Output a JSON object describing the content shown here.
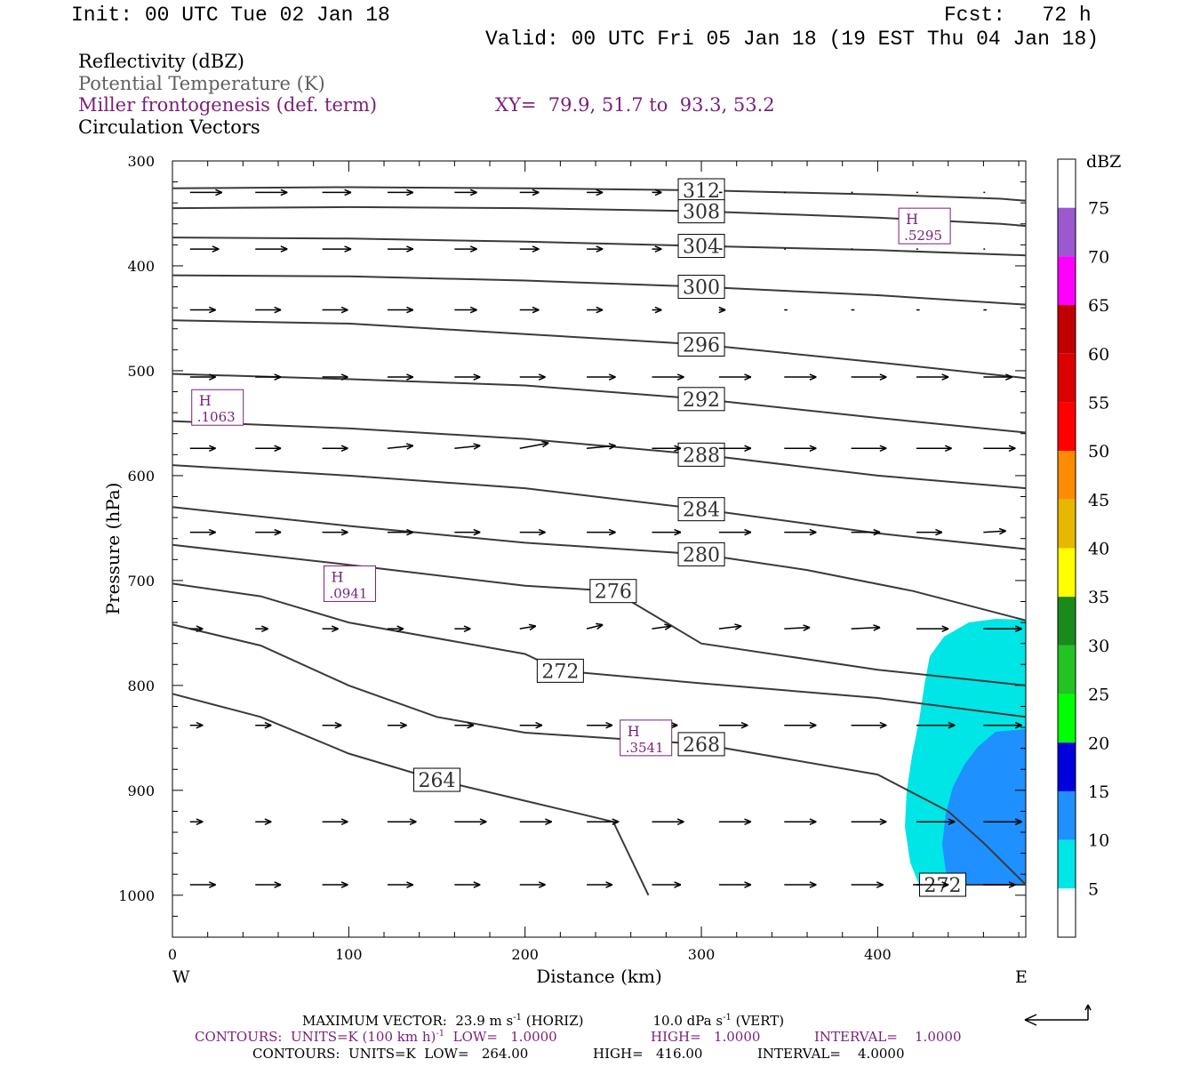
{
  "header": {
    "init": "Init: 00 UTC Tue 02 Jan 18",
    "fcst": "Fcst:   72 h",
    "valid": "Valid: 00 UTC Fri 05 Jan 18 (19 EST Thu 04 Jan 18)"
  },
  "legend_lines": {
    "reflectivity": "Reflectivity (dBZ)",
    "theta": "Potential Temperature (K)",
    "frontogenesis": "Miller frontogenesis (def. term)",
    "xy": "XY=  79.9, 51.7 to  93.3, 53.2",
    "vectors": "Circulation Vectors"
  },
  "footer": {
    "max_vector_a": "MAXIMUM VECTOR:  23.9 m s",
    "max_vector_a_sup": "-1",
    "max_vector_b": " (HORIZ)",
    "max_vector_c": "10.0 dPa s",
    "max_vector_c_sup": "-1",
    "max_vector_d": " (VERT)",
    "contours1_a": "CONTOURS:  UNITS=K (100 km h)",
    "contours1_sup": "-1",
    "contours1_b": "  LOW=   1.0000",
    "contours1_high": "HIGH=   1.0000",
    "contours1_int": "INTERVAL=    1.0000",
    "contours2_a": "CONTOURS:  UNITS=K  LOW=   264.00",
    "contours2_high": "HIGH=   416.00",
    "contours2_int": "INTERVAL=    4.0000"
  },
  "colors": {
    "frontogenesis": "#7a1f7a",
    "theta_line": "#3a3a3a"
  },
  "chart_data": {
    "type": "cross-section",
    "xlabel": "Distance (km)",
    "ylabel": "Pressure (hPa)",
    "x_end_labels": [
      "W",
      "E"
    ],
    "xlim": [
      0,
      484
    ],
    "ylim": [
      1040,
      300
    ],
    "y_scale": "linear (pressure, increasing downward)",
    "x_ticks": [
      0,
      100,
      200,
      300,
      400
    ],
    "y_ticks": [
      300,
      400,
      500,
      600,
      700,
      800,
      900,
      1000
    ],
    "colorbar": {
      "unit": "dBZ",
      "labels": [
        "75",
        "70",
        "65",
        "60",
        "55",
        "50",
        "45",
        "40",
        "35",
        "30",
        "25",
        "20",
        "15",
        "10",
        "5"
      ],
      "colors": [
        "#ffffff",
        "#9b59d0",
        "#ff00ff",
        "#c00000",
        "#dc0000",
        "#ff0000",
        "#ff8c00",
        "#e6b800",
        "#ffff00",
        "#1a8a1a",
        "#22c322",
        "#00ff00",
        "#0000dd",
        "#1e90ff",
        "#00e5e5",
        "#ffffff"
      ]
    },
    "theta_contours": [
      {
        "value": 312,
        "label": "312",
        "points": [
          [
            0,
            326
          ],
          [
            100,
            325
          ],
          [
            200,
            326
          ],
          [
            300,
            328
          ],
          [
            400,
            332
          ],
          [
            470,
            336
          ],
          [
            484,
            338
          ]
        ]
      },
      {
        "value": 308,
        "label": "308",
        "points": [
          [
            0,
            345
          ],
          [
            100,
            344
          ],
          [
            200,
            345
          ],
          [
            300,
            348
          ],
          [
            400,
            354
          ],
          [
            470,
            360
          ],
          [
            484,
            362
          ]
        ]
      },
      {
        "value": 304,
        "label": "304",
        "points": [
          [
            0,
            373
          ],
          [
            100,
            374
          ],
          [
            200,
            377
          ],
          [
            300,
            381
          ],
          [
            400,
            385
          ],
          [
            484,
            390
          ]
        ]
      },
      {
        "value": 300,
        "label": "300",
        "points": [
          [
            0,
            409
          ],
          [
            100,
            410
          ],
          [
            200,
            414
          ],
          [
            300,
            420
          ],
          [
            400,
            428
          ],
          [
            484,
            437
          ]
        ]
      },
      {
        "value": 296,
        "label": "296",
        "points": [
          [
            0,
            452
          ],
          [
            100,
            455
          ],
          [
            200,
            465
          ],
          [
            300,
            475
          ],
          [
            400,
            492
          ],
          [
            484,
            507
          ]
        ]
      },
      {
        "value": 292,
        "label": "292",
        "points": [
          [
            0,
            503
          ],
          [
            100,
            508
          ],
          [
            200,
            514
          ],
          [
            300,
            527
          ],
          [
            400,
            545
          ],
          [
            484,
            559
          ]
        ]
      },
      {
        "value": 288,
        "label": "288",
        "points": [
          [
            0,
            548
          ],
          [
            100,
            555
          ],
          [
            200,
            565
          ],
          [
            300,
            580
          ],
          [
            400,
            600
          ],
          [
            484,
            612
          ]
        ]
      },
      {
        "value": 284,
        "label": "284",
        "points": [
          [
            0,
            590
          ],
          [
            100,
            600
          ],
          [
            200,
            612
          ],
          [
            300,
            632
          ],
          [
            400,
            655
          ],
          [
            484,
            670
          ]
        ]
      },
      {
        "value": 280,
        "label": "280",
        "points": [
          [
            0,
            630
          ],
          [
            100,
            648
          ],
          [
            200,
            664
          ],
          [
            300,
            675
          ],
          [
            360,
            690
          ],
          [
            420,
            710
          ],
          [
            484,
            738
          ]
        ]
      },
      {
        "value": 276,
        "label": "276",
        "points": [
          [
            0,
            666
          ],
          [
            100,
            685
          ],
          [
            200,
            705
          ],
          [
            250,
            710
          ],
          [
            300,
            760
          ],
          [
            400,
            785
          ],
          [
            484,
            800
          ]
        ]
      },
      {
        "value": 272,
        "label": "272",
        "points": [
          [
            0,
            703
          ],
          [
            50,
            715
          ],
          [
            100,
            740
          ],
          [
            200,
            770
          ],
          [
            220,
            786
          ],
          [
            300,
            798
          ],
          [
            400,
            812
          ],
          [
            484,
            830
          ]
        ]
      },
      {
        "value": 268,
        "label": "268",
        "points": [
          [
            0,
            742
          ],
          [
            50,
            762
          ],
          [
            100,
            800
          ],
          [
            150,
            830
          ],
          [
            200,
            845
          ],
          [
            300,
            856
          ],
          [
            400,
            885
          ],
          [
            440,
            920
          ],
          [
            460,
            950
          ],
          [
            484,
            990
          ]
        ]
      },
      {
        "value": 264,
        "label": "264",
        "points": [
          [
            0,
            808
          ],
          [
            50,
            830
          ],
          [
            100,
            865
          ],
          [
            150,
            890
          ],
          [
            200,
            910
          ],
          [
            250,
            930
          ],
          [
            270,
            1000
          ]
        ]
      },
      {
        "value": 272,
        "label": "272",
        "points": [
          [
            420,
            990
          ],
          [
            484,
            990
          ]
        ]
      }
    ],
    "frontogenesis_highs": [
      {
        "label": "H",
        "value": ".5295",
        "x": 418,
        "p": 362
      },
      {
        "label": "H",
        "value": ".1063",
        "x": 17,
        "p": 535
      },
      {
        "label": "H",
        "value": ".0941",
        "x": 92,
        "p": 703
      },
      {
        "label": "H",
        "value": ".3541",
        "x": 260,
        "p": 850
      }
    ]
  }
}
